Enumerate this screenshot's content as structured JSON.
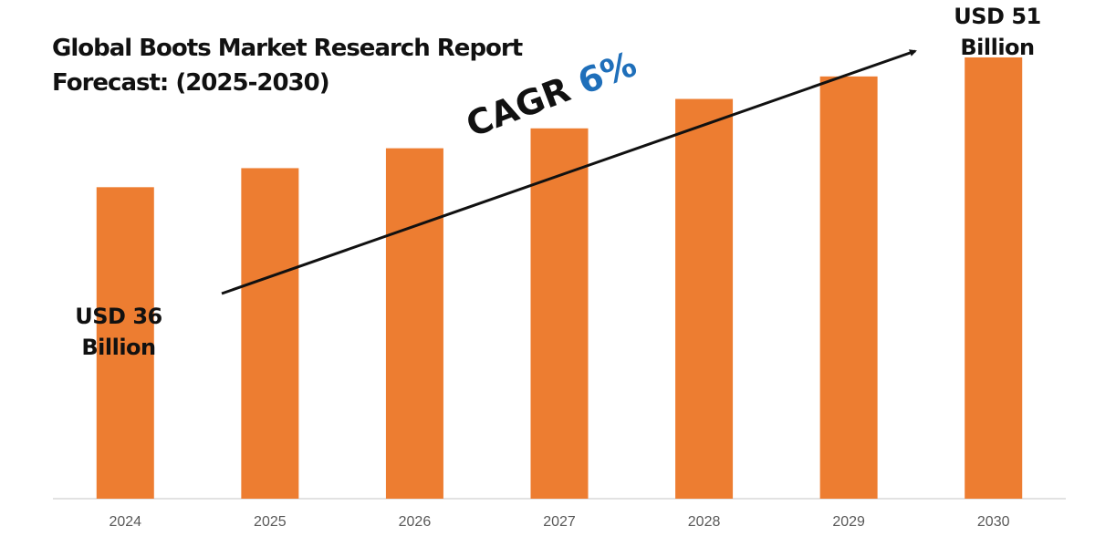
{
  "chart_data": {
    "type": "bar",
    "title": [
      "Global Boots Market Research Report",
      "Forecast: (2025-2030)"
    ],
    "categories": [
      "2024",
      "2025",
      "2026",
      "2027",
      "2028",
      "2029",
      "2030"
    ],
    "values": [
      36,
      38.2,
      40.5,
      42.8,
      46.2,
      48.8,
      51
    ],
    "unit": "USD Billion",
    "ylim": [
      0,
      55
    ],
    "bar_color": "#ed7d31",
    "grid": false,
    "legend": "none",
    "annotations": {
      "start": [
        "USD 36",
        "Billion"
      ],
      "end": [
        "USD 51",
        "Billion"
      ],
      "cagr_label": "CAGR",
      "cagr_value": "6%",
      "cagr_value_color": "#1f6fba",
      "trend_arrow": true
    }
  }
}
